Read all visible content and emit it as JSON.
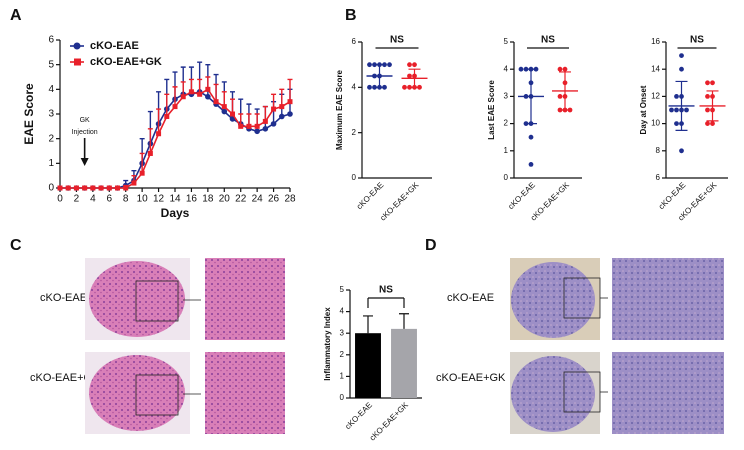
{
  "panel_labels": [
    "A",
    "B",
    "C",
    "D"
  ],
  "figure_c": {
    "rows": [
      "cKO-EAE",
      "cKO-EAE+GK"
    ]
  },
  "figure_d": {
    "rows": [
      "cKO-EAE",
      "cKO-EAE+GK"
    ]
  },
  "chart_data": [
    {
      "type": "line",
      "xlabel": "Days",
      "ylabel": "EAE Score",
      "x": [
        0,
        1,
        2,
        3,
        4,
        5,
        6,
        7,
        8,
        9,
        10,
        11,
        12,
        13,
        14,
        15,
        16,
        17,
        18,
        19,
        20,
        21,
        22,
        23,
        24,
        25,
        26,
        27,
        28
      ],
      "xlim": [
        0,
        28
      ],
      "xticks": [
        0,
        2,
        4,
        6,
        8,
        10,
        12,
        14,
        16,
        18,
        20,
        22,
        24,
        26,
        28
      ],
      "ylim": [
        0,
        6
      ],
      "yticks": [
        0,
        1,
        2,
        3,
        4,
        5,
        6
      ],
      "legend": "upper left",
      "annotation": {
        "lines": [
          "GK",
          "Injection"
        ],
        "x": 3
      },
      "series": [
        {
          "name": "cKO-EAE",
          "color": "#1f2f8f",
          "marker": "circle",
          "values": [
            0,
            0,
            0,
            0,
            0,
            0,
            0,
            0,
            0.1,
            0.3,
            1.0,
            1.8,
            2.6,
            3.2,
            3.6,
            3.8,
            3.8,
            3.9,
            3.7,
            3.4,
            3.1,
            2.8,
            2.6,
            2.4,
            2.3,
            2.4,
            2.6,
            2.9,
            3.0
          ],
          "errors": [
            0,
            0,
            0,
            0,
            0,
            0,
            0,
            0,
            0.2,
            0.4,
            1.0,
            1.3,
            1.3,
            1.2,
            1.1,
            1.1,
            1.1,
            1.2,
            1.3,
            1.2,
            1.2,
            1.1,
            1.0,
            1.0,
            0.9,
            0.9,
            0.9,
            0.9,
            1.0
          ]
        },
        {
          "name": "cKO-EAE+GK",
          "color": "#e8202a",
          "marker": "square",
          "values": [
            0,
            0,
            0,
            0,
            0,
            0,
            0,
            0,
            0,
            0.2,
            0.6,
            1.4,
            2.2,
            2.9,
            3.3,
            3.7,
            3.9,
            3.8,
            4.0,
            3.5,
            3.3,
            3.0,
            2.5,
            2.5,
            2.5,
            2.7,
            3.2,
            3.3,
            3.5
          ],
          "errors": [
            0,
            0,
            0,
            0,
            0,
            0,
            0,
            0,
            0.1,
            0.3,
            0.8,
            1.0,
            1.0,
            0.9,
            0.8,
            0.6,
            0.5,
            0.6,
            0.5,
            0.7,
            0.6,
            0.6,
            0.5,
            0.5,
            0.5,
            0.6,
            0.6,
            0.7,
            0.9
          ]
        }
      ]
    },
    {
      "type": "dot",
      "ylabel": "Maximum EAE Score",
      "annotation": "NS",
      "categories": [
        "cKO-EAE",
        "cKO-EAE+GK"
      ],
      "ylim": [
        0,
        6
      ],
      "yticks": [
        0,
        2,
        4,
        6
      ],
      "groups": [
        {
          "color": "#1f2f8f",
          "values": [
            5,
            5,
            5,
            5,
            5,
            4.5,
            4.5,
            4,
            4,
            4,
            4
          ],
          "mean": 4.5,
          "sd": 0.5
        },
        {
          "color": "#e8202a",
          "values": [
            5,
            5,
            4.5,
            4.5,
            4,
            4,
            4,
            4
          ],
          "mean": 4.4,
          "sd": 0.4
        }
      ]
    },
    {
      "type": "dot",
      "ylabel": "Last EAE Score",
      "annotation": "NS",
      "categories": [
        "cKO-EAE",
        "cKO-EAE+GK"
      ],
      "ylim": [
        0,
        5
      ],
      "yticks": [
        0,
        1,
        2,
        3,
        4,
        5
      ],
      "groups": [
        {
          "color": "#1f2f8f",
          "values": [
            4,
            4,
            4,
            4,
            3.5,
            3,
            3,
            2,
            2,
            1.5,
            0.5
          ],
          "mean": 3.0,
          "sd": 1.0
        },
        {
          "color": "#e8202a",
          "values": [
            4,
            4,
            3.5,
            3,
            3,
            2.5,
            2.5,
            2.5
          ],
          "mean": 3.2,
          "sd": 0.7
        }
      ]
    },
    {
      "type": "dot",
      "ylabel": "Day at Onset",
      "annotation": "NS",
      "categories": [
        "cKO-EAE",
        "cKO-EAE+GK"
      ],
      "ylim": [
        6,
        16
      ],
      "yticks": [
        6,
        8,
        10,
        12,
        14,
        16
      ],
      "groups": [
        {
          "color": "#1f2f8f",
          "values": [
            15,
            14,
            12,
            12,
            11,
            11,
            11,
            11,
            10,
            10,
            8
          ],
          "mean": 11.3,
          "sd": 1.8
        },
        {
          "color": "#e8202a",
          "values": [
            13,
            13,
            12,
            12,
            11,
            11,
            10,
            10
          ],
          "mean": 11.3,
          "sd": 1.1
        }
      ]
    },
    {
      "type": "bar",
      "ylabel": "Inflammatory Index",
      "annotation": "NS",
      "categories": [
        "cKO-EAE",
        "cKO-EAE+GK"
      ],
      "values": [
        3.0,
        3.2
      ],
      "errors": [
        0.8,
        0.7
      ],
      "colors": [
        "#000000",
        "#a5a5aa"
      ],
      "ylim": [
        0,
        5
      ],
      "yticks": [
        0,
        1,
        2,
        3,
        4,
        5
      ]
    }
  ]
}
